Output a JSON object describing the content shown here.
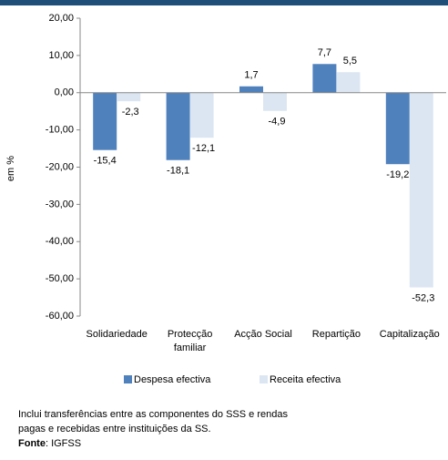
{
  "chart_data": {
    "type": "bar",
    "categories": [
      "Solidariedade",
      "Protecção familiar",
      "Acção Social",
      "Repartição",
      "Capitalização"
    ],
    "series": [
      {
        "name": "Despesa efectiva",
        "color": "#4f81bd",
        "values": [
          -15.4,
          -18.1,
          1.7,
          7.7,
          -19.2
        ],
        "value_labels": [
          "-15,4",
          "-18,1",
          "1,7",
          "7,7",
          "-19,2"
        ]
      },
      {
        "name": "Receita efectiva",
        "color": "#dce6f2",
        "values": [
          -2.3,
          -12.1,
          -4.9,
          5.5,
          -52.3
        ],
        "value_labels": [
          "-2,3",
          "-12,1",
          "-4,9",
          "5,5",
          "-52,3"
        ]
      }
    ],
    "ylabel": "em %",
    "ylim": [
      -60,
      20
    ],
    "yticks": [
      {
        "value": -60,
        "label": "-60,00"
      },
      {
        "value": -50,
        "label": "-50,00"
      },
      {
        "value": -40,
        "label": "-40,00"
      },
      {
        "value": -30,
        "label": "-30,00"
      },
      {
        "value": -20,
        "label": "-20,00"
      },
      {
        "value": -10,
        "label": "-10,00"
      },
      {
        "value": 0,
        "label": "0,00"
      },
      {
        "value": 10,
        "label": "10,00"
      },
      {
        "value": 20,
        "label": "20,00"
      }
    ],
    "grid": false,
    "legend": "bottom"
  },
  "notes": [
    "Inclui transferências entre as componentes do SSS e rendas",
    "pagas e recebidas entre instituições da SS."
  ],
  "source_label": "Fonte",
  "source": ": IGFSS"
}
